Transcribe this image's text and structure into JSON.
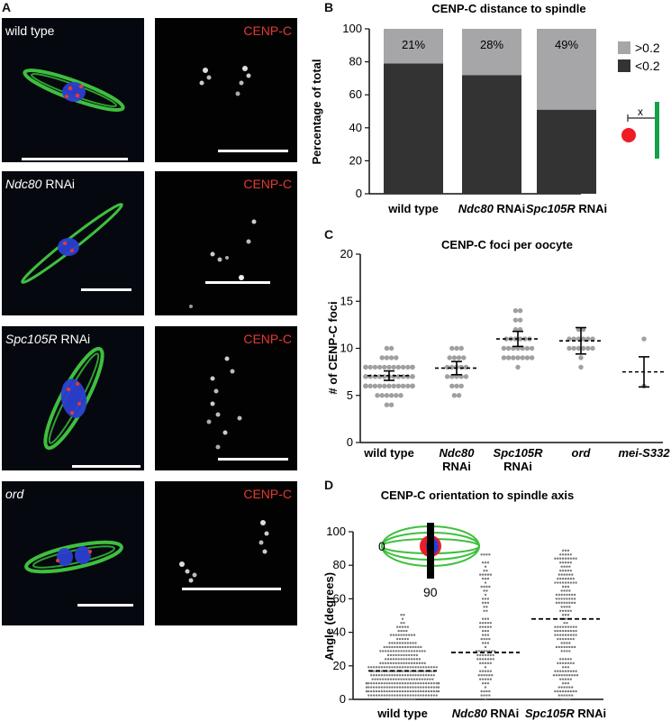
{
  "panel_a": {
    "label": "A",
    "channel_label": "CENP-C",
    "rows": [
      {
        "genotype_italic": "",
        "genotype_rest": "wild type"
      },
      {
        "genotype_italic": "Ndc80",
        "genotype_rest": " RNAi"
      },
      {
        "genotype_italic": "Spc105R",
        "genotype_rest": " RNAi"
      },
      {
        "genotype_italic": "ord",
        "genotype_rest": ""
      }
    ]
  },
  "panel_b": {
    "label": "B",
    "inset_symbol": "x",
    "colors": {
      "gt": "#a6a6a8",
      "lt": "#333333"
    }
  },
  "panel_c": {
    "label": "C"
  },
  "panel_d": {
    "label": "D",
    "inset_labels": {
      "zero": "0",
      "ninety": "90"
    }
  },
  "chart_data": [
    {
      "id": "B",
      "type": "bar",
      "stacked": true,
      "title": "CENP-C distance to spindle",
      "ylabel": "Percentage of total",
      "xlabel": "",
      "ylim": [
        0,
        100
      ],
      "yticks": [
        0,
        20,
        40,
        60,
        80,
        100
      ],
      "categories": [
        {
          "italic": "",
          "rest": "wild type"
        },
        {
          "italic": "Ndc80",
          "rest": " RNAi"
        },
        {
          "italic": "Spc105R",
          "rest": " RNAi"
        }
      ],
      "series": [
        {
          "name": "<0.2",
          "values": [
            79,
            72,
            51
          ]
        },
        {
          "name": ">0.2",
          "values": [
            21,
            28,
            49
          ]
        }
      ],
      "data_labels": [
        "21%",
        "28%",
        "49%"
      ],
      "legend_position": "right"
    },
    {
      "id": "C",
      "type": "scatter",
      "title": "CENP-C foci per oocyte",
      "ylabel": "# of CENP-C foci",
      "xlabel": "",
      "ylim": [
        0,
        20
      ],
      "yticks": [
        0,
        5,
        10,
        15,
        20
      ],
      "groups": [
        {
          "label_line1": "wild type",
          "label_line2": "",
          "italic": false,
          "mean": 7.1,
          "err": [
            6.6,
            7.6
          ],
          "n": 75
        },
        {
          "label_line1": "Ndc80",
          "label_line2": "RNAi",
          "italic": true,
          "mean": 7.9,
          "err": [
            7.2,
            8.6
          ],
          "n": 22
        },
        {
          "label_line1": "Spc105R",
          "label_line2": "RNAi",
          "italic": true,
          "mean": 11.0,
          "err": [
            10.2,
            11.8
          ],
          "n": 27
        },
        {
          "label_line1": "ord",
          "label_line2": "",
          "italic": true,
          "mean": 10.8,
          "err": [
            9.4,
            12.2
          ],
          "n": 16
        },
        {
          "label_line1": "mei-S332",
          "label_line2": "",
          "italic": true,
          "mean": 7.5,
          "err": [
            5.9,
            9.1
          ],
          "n": 2
        }
      ]
    },
    {
      "id": "D",
      "type": "scatter",
      "title": "CENP-C orientation to spindle axis",
      "ylabel": "Angle (degrees)",
      "xlabel": "",
      "ylim": [
        0,
        100
      ],
      "yticks": [
        0,
        20,
        40,
        60,
        80,
        100
      ],
      "groups": [
        {
          "italic": "",
          "rest": "wild type",
          "median": 17,
          "n": 350
        },
        {
          "italic": "Ndc80",
          "rest": " RNAi",
          "median": 28,
          "n": 120
        },
        {
          "italic": "Spc105R",
          "rest": " RNAi",
          "median": 48,
          "n": 220
        }
      ]
    }
  ]
}
